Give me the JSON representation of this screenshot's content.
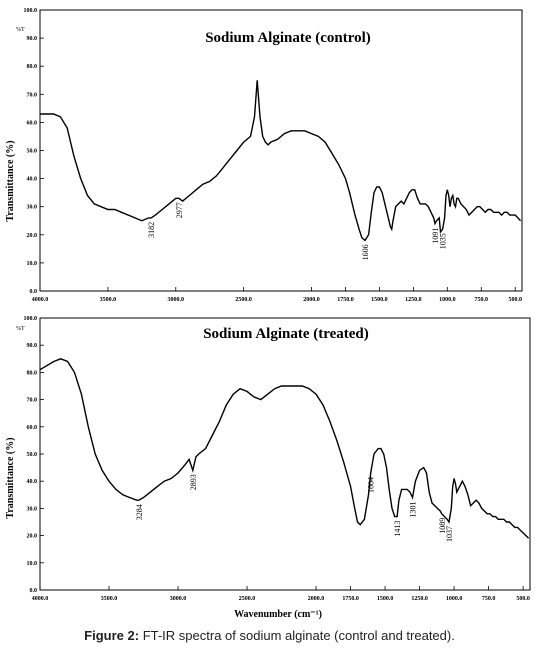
{
  "caption": {
    "label": "Figure 2:",
    "text": "FT-IR spectra of sodium alginate (control and treated)."
  },
  "chart_data": [
    {
      "type": "line",
      "title": "Sodium Alginate (control)",
      "ylabel": "Transmittance (%)",
      "xlabel": "",
      "y_unit_label": "%T",
      "x_reversed": true,
      "xlim": [
        4000,
        450
      ],
      "ylim": [
        0,
        100
      ],
      "x_ticks": [
        "4000.0",
        "3500.0",
        "3000.0",
        "2500.0",
        "2000.0",
        "1750.0",
        "1500.0",
        "1250.0",
        "1000.0",
        "750.0",
        "500.0"
      ],
      "x_tick_values": [
        4000,
        3500,
        3000,
        2500,
        2000,
        1750,
        1500,
        1250,
        1000,
        750,
        500
      ],
      "y_ticks": [
        "0.0",
        "10.0",
        "20.0",
        "30.0",
        "40.0",
        "50.0",
        "60.0",
        "70.0",
        "80.0",
        "90.0",
        "100.0"
      ],
      "y_tick_values": [
        0,
        10,
        20,
        30,
        40,
        50,
        60,
        70,
        80,
        90,
        100
      ],
      "series": [
        {
          "x": [
            4000,
            3900,
            3850,
            3800,
            3750,
            3700,
            3650,
            3600,
            3550,
            3500,
            3450,
            3400,
            3350,
            3300,
            3250,
            3200,
            3182,
            3150,
            3100,
            3050,
            3000,
            2977,
            2950,
            2900,
            2850,
            2800,
            2750,
            2700,
            2650,
            2600,
            2550,
            2500,
            2450,
            2420,
            2400,
            2380,
            2360,
            2340,
            2320,
            2300,
            2250,
            2200,
            2150,
            2100,
            2050,
            2000,
            1950,
            1900,
            1850,
            1800,
            1750,
            1720,
            1700,
            1680,
            1650,
            1630,
            1606,
            1580,
            1560,
            1540,
            1520,
            1500,
            1480,
            1460,
            1440,
            1420,
            1410,
            1400,
            1380,
            1360,
            1340,
            1320,
            1300,
            1280,
            1260,
            1240,
            1220,
            1200,
            1180,
            1160,
            1140,
            1120,
            1100,
            1091,
            1080,
            1060,
            1050,
            1035,
            1020,
            1010,
            1000,
            990,
            980,
            970,
            960,
            950,
            940,
            930,
            920,
            900,
            880,
            860,
            840,
            820,
            800,
            780,
            760,
            740,
            720,
            700,
            680,
            660,
            640,
            620,
            600,
            580,
            560,
            540,
            520,
            500,
            480,
            460
          ],
          "y": [
            63,
            63,
            62,
            58,
            48,
            40,
            34,
            31,
            30,
            29,
            29,
            28,
            27,
            26,
            25,
            26,
            26,
            27,
            29,
            31,
            33,
            33,
            32,
            34,
            36,
            38,
            39,
            41,
            44,
            47,
            50,
            53,
            55,
            62,
            75,
            62,
            55,
            53,
            52,
            53,
            54,
            56,
            57,
            57,
            57,
            56,
            55,
            53,
            49,
            45,
            40,
            35,
            31,
            27,
            22,
            19,
            18,
            20,
            28,
            35,
            37,
            37,
            35,
            31,
            27,
            23,
            22,
            25,
            30,
            31,
            32,
            31,
            33,
            35,
            36,
            36,
            33,
            31,
            31,
            31,
            30,
            28,
            26,
            24,
            25,
            26,
            21,
            22,
            26,
            34,
            36,
            34,
            30,
            33,
            34,
            31,
            30,
            33,
            33,
            31,
            30,
            29,
            27,
            28,
            29,
            30,
            30,
            29,
            28,
            29,
            29,
            28,
            28,
            28,
            27,
            28,
            28,
            27,
            27,
            27,
            26,
            25
          ]
        }
      ],
      "annotations": [
        {
          "x": 3182,
          "label": "3182"
        },
        {
          "x": 2977,
          "label": "2977"
        },
        {
          "x": 1606,
          "label": "1606"
        },
        {
          "x": 1091,
          "label": "1091"
        },
        {
          "x": 1035,
          "label": "1035"
        }
      ]
    },
    {
      "type": "line",
      "title": "Sodium Alginate (treated)",
      "ylabel": "Transmittance (%)",
      "xlabel": "Wavenumber (cm⁻¹)",
      "y_unit_label": "%T",
      "x_reversed": true,
      "xlim": [
        4000,
        450
      ],
      "ylim": [
        0,
        100
      ],
      "x_ticks": [
        "4000.0",
        "3500.0",
        "3000.0",
        "2500.0",
        "2000.0",
        "1750.0",
        "1500.0",
        "1250.0",
        "1000.0",
        "750.0",
        "500.0"
      ],
      "x_tick_values": [
        4000,
        3500,
        3000,
        2500,
        2000,
        1750,
        1500,
        1250,
        1000,
        750,
        500
      ],
      "y_ticks": [
        "0.0",
        "10.0",
        "20.0",
        "30.0",
        "40.0",
        "50.0",
        "60.0",
        "70.0",
        "80.0",
        "90.0",
        "100.0"
      ],
      "y_tick_values": [
        0,
        10,
        20,
        30,
        40,
        50,
        60,
        70,
        80,
        90,
        100
      ],
      "series": [
        {
          "x": [
            4000,
            3900,
            3850,
            3800,
            3750,
            3700,
            3650,
            3600,
            3550,
            3500,
            3450,
            3400,
            3350,
            3300,
            3284,
            3250,
            3200,
            3150,
            3100,
            3050,
            3000,
            2950,
            2920,
            2893,
            2870,
            2850,
            2800,
            2750,
            2700,
            2650,
            2600,
            2550,
            2500,
            2450,
            2400,
            2350,
            2300,
            2250,
            2200,
            2150,
            2100,
            2050,
            2000,
            1950,
            1900,
            1850,
            1800,
            1750,
            1720,
            1700,
            1680,
            1650,
            1620,
            1604,
            1580,
            1550,
            1530,
            1510,
            1490,
            1470,
            1450,
            1430,
            1413,
            1400,
            1380,
            1360,
            1340,
            1320,
            1301,
            1280,
            1250,
            1220,
            1200,
            1180,
            1160,
            1140,
            1120,
            1100,
            1089,
            1070,
            1050,
            1037,
            1020,
            1010,
            1000,
            990,
            980,
            960,
            940,
            920,
            900,
            880,
            860,
            840,
            820,
            800,
            780,
            760,
            740,
            720,
            700,
            680,
            660,
            640,
            620,
            600,
            580,
            560,
            540,
            520,
            500,
            480,
            460
          ],
          "y": [
            81,
            84,
            85,
            84,
            80,
            72,
            60,
            50,
            44,
            40,
            37,
            35,
            34,
            33,
            33,
            34,
            36,
            38,
            40,
            41,
            43,
            46,
            48,
            44,
            49,
            50,
            52,
            57,
            62,
            68,
            72,
            74,
            73,
            71,
            70,
            72,
            74,
            75,
            75,
            75,
            75,
            74,
            72,
            68,
            62,
            55,
            47,
            38,
            30,
            25,
            24,
            26,
            35,
            43,
            50,
            52,
            52,
            50,
            45,
            37,
            30,
            27,
            27,
            33,
            37,
            37,
            37,
            36,
            34,
            40,
            44,
            45,
            43,
            36,
            32,
            31,
            30,
            29,
            28,
            27,
            26,
            25,
            30,
            38,
            41,
            39,
            36,
            38,
            40,
            38,
            35,
            31,
            32,
            33,
            32,
            30,
            29,
            28,
            28,
            27,
            27,
            26,
            26,
            26,
            25,
            25,
            24,
            23,
            23,
            22,
            21,
            20,
            19
          ]
        }
      ],
      "annotations": [
        {
          "x": 3284,
          "label": "3284"
        },
        {
          "x": 2893,
          "label": "2893"
        },
        {
          "x": 1604,
          "label": "1604"
        },
        {
          "x": 1413,
          "label": "1413"
        },
        {
          "x": 1301,
          "label": "1301"
        },
        {
          "x": 1089,
          "label": "1089"
        },
        {
          "x": 1037,
          "label": "1037"
        }
      ]
    }
  ]
}
